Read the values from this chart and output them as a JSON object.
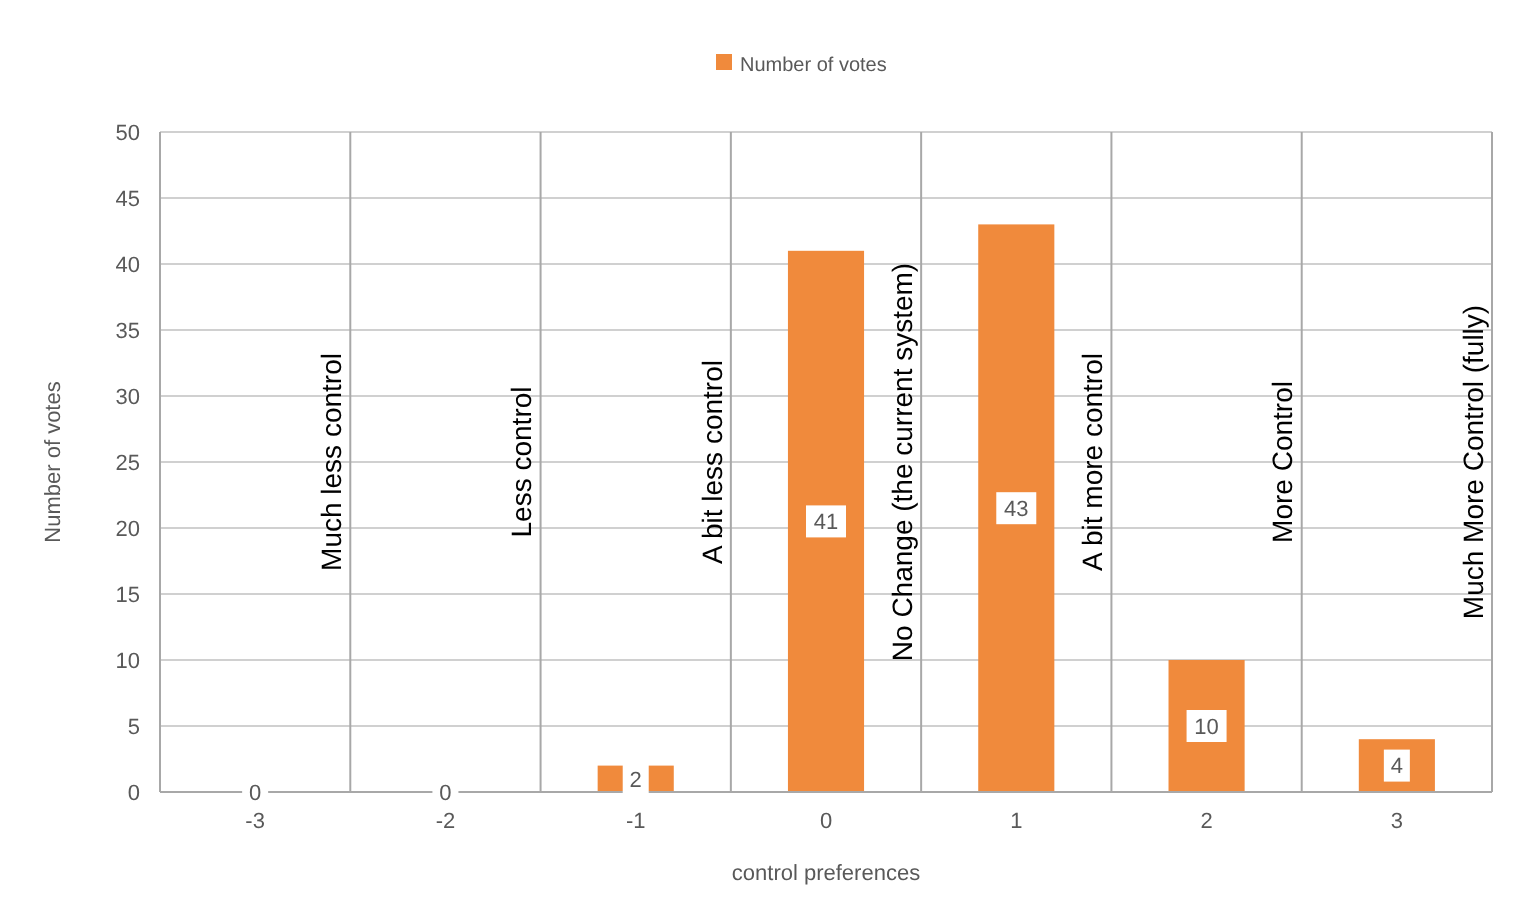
{
  "chart_data": {
    "type": "bar",
    "xlabel": "control preferences",
    "ylabel": "Number of votes",
    "categories": [
      "-3",
      "-2",
      "-1",
      "0",
      "1",
      "2",
      "3"
    ],
    "series": [
      {
        "name": "Number of votes",
        "color": "#f08a3c",
        "values": [
          0,
          0,
          2,
          41,
          43,
          10,
          4
        ]
      }
    ],
    "ylim": [
      0,
      50
    ],
    "yticks": [
      0,
      5,
      10,
      15,
      20,
      25,
      30,
      35,
      40,
      45,
      50
    ],
    "grid": true,
    "legend": "top",
    "data_labels": true,
    "annotations": [
      "Much less control",
      "Less control",
      "A bit less control",
      "No Change (the current system)",
      "A bit more control",
      "More Control",
      "Much More Control (fully)"
    ]
  }
}
